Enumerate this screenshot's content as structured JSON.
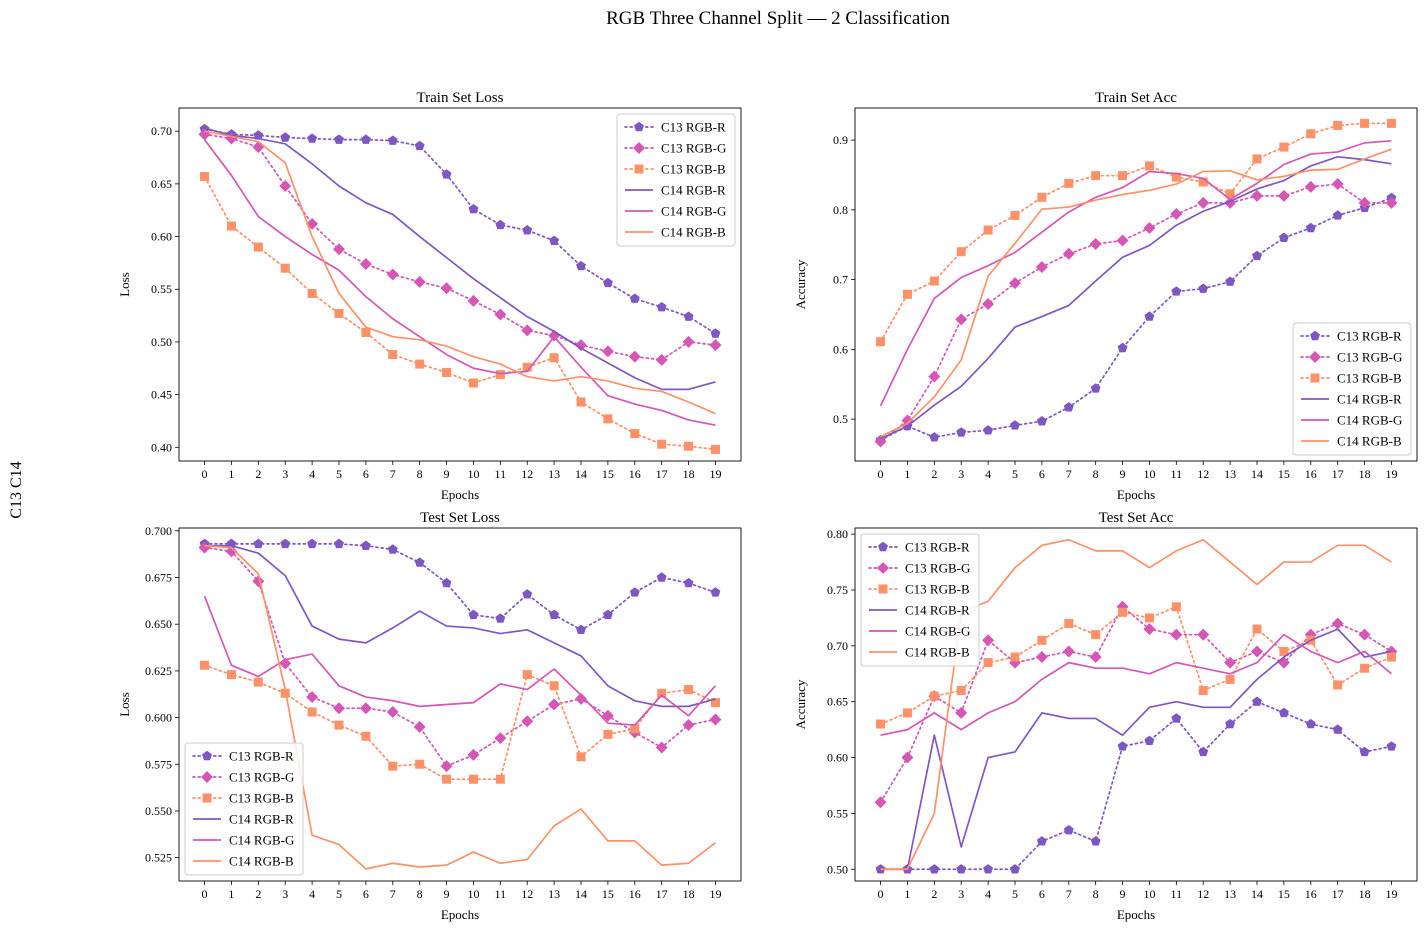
{
  "figure": {
    "title": "RGB Three Channel Split — 2 Classification",
    "side_label": "C13 C14"
  },
  "colors": {
    "R": "#7e57c2",
    "G": "#d556b5",
    "B": "#ff9068"
  },
  "chart_data": [
    {
      "type": "line",
      "title": "Train Set Loss",
      "xlabel": "Epochs",
      "ylabel": "Loss",
      "x": [
        0,
        1,
        2,
        3,
        4,
        5,
        6,
        7,
        8,
        9,
        10,
        11,
        12,
        13,
        14,
        15,
        16,
        17,
        18,
        19
      ],
      "ylim": [
        0.387,
        0.722
      ],
      "yticks": [
        0.4,
        0.45,
        0.5,
        0.55,
        0.6,
        0.65,
        0.7
      ],
      "ytick_labels": [
        "0.40",
        "0.45",
        "0.50",
        "0.55",
        "0.60",
        "0.65",
        "0.70"
      ],
      "legend_position": "top-right",
      "series": [
        {
          "name": "C13 RGB-R",
          "style": "dotted",
          "marker": "pentagon",
          "channel": "R",
          "values": [
            0.702,
            0.697,
            0.696,
            0.694,
            0.693,
            0.692,
            0.692,
            0.691,
            0.686,
            0.659,
            0.626,
            0.611,
            0.606,
            0.596,
            0.572,
            0.556,
            0.541,
            0.533,
            0.524,
            0.508
          ]
        },
        {
          "name": "C13 RGB-G",
          "style": "dotted",
          "marker": "diamond",
          "channel": "G",
          "values": [
            0.697,
            0.693,
            0.685,
            0.648,
            0.612,
            0.588,
            0.574,
            0.564,
            0.557,
            0.551,
            0.539,
            0.526,
            0.511,
            0.506,
            0.497,
            0.491,
            0.486,
            0.483,
            0.5,
            0.497
          ]
        },
        {
          "name": "C13 RGB-B",
          "style": "dotted",
          "marker": "square",
          "channel": "B",
          "values": [
            0.657,
            0.61,
            0.59,
            0.57,
            0.546,
            0.527,
            0.509,
            0.488,
            0.479,
            0.471,
            0.461,
            0.469,
            0.476,
            0.485,
            0.443,
            0.427,
            0.413,
            0.403,
            0.401,
            0.398
          ]
        },
        {
          "name": "C14 RGB-R",
          "style": "solid",
          "marker": "none",
          "channel": "R",
          "values": [
            0.703,
            0.696,
            0.693,
            0.688,
            0.669,
            0.648,
            0.632,
            0.621,
            0.6,
            0.58,
            0.56,
            0.542,
            0.524,
            0.51,
            0.494,
            0.48,
            0.466,
            0.455,
            0.455,
            0.462
          ]
        },
        {
          "name": "C14 RGB-G",
          "style": "solid",
          "marker": "none",
          "channel": "G",
          "values": [
            0.692,
            0.658,
            0.619,
            0.6,
            0.583,
            0.568,
            0.543,
            0.522,
            0.505,
            0.488,
            0.475,
            0.47,
            0.472,
            0.505,
            0.476,
            0.449,
            0.441,
            0.435,
            0.426,
            0.421
          ]
        },
        {
          "name": "C14 RGB-B",
          "style": "solid",
          "marker": "none",
          "channel": "B",
          "values": [
            0.7,
            0.695,
            0.69,
            0.67,
            0.6,
            0.546,
            0.514,
            0.505,
            0.502,
            0.496,
            0.486,
            0.479,
            0.467,
            0.463,
            0.467,
            0.463,
            0.456,
            0.453,
            0.443,
            0.432
          ]
        }
      ]
    },
    {
      "type": "line",
      "title": "Train Set Acc",
      "xlabel": "Epochs",
      "ylabel": "Accuracy",
      "x": [
        0,
        1,
        2,
        3,
        4,
        5,
        6,
        7,
        8,
        9,
        10,
        11,
        12,
        13,
        14,
        15,
        16,
        17,
        18,
        19
      ],
      "ylim": [
        0.44,
        0.946
      ],
      "yticks": [
        0.5,
        0.6,
        0.7,
        0.8,
        0.9
      ],
      "ytick_labels": [
        "0.5",
        "0.6",
        "0.7",
        "0.8",
        "0.9"
      ],
      "legend_position": "bottom-right",
      "series": [
        {
          "name": "C13 RGB-R",
          "style": "dotted",
          "marker": "pentagon",
          "channel": "R",
          "values": [
            0.47,
            0.49,
            0.474,
            0.481,
            0.484,
            0.491,
            0.497,
            0.517,
            0.544,
            0.602,
            0.647,
            0.683,
            0.687,
            0.697,
            0.734,
            0.76,
            0.774,
            0.792,
            0.803,
            0.817
          ]
        },
        {
          "name": "C13 RGB-G",
          "style": "dotted",
          "marker": "diamond",
          "channel": "G",
          "values": [
            0.468,
            0.498,
            0.561,
            0.643,
            0.665,
            0.695,
            0.718,
            0.737,
            0.751,
            0.756,
            0.774,
            0.794,
            0.81,
            0.81,
            0.82,
            0.82,
            0.833,
            0.837,
            0.81,
            0.81
          ]
        },
        {
          "name": "C13 RGB-B",
          "style": "dotted",
          "marker": "square",
          "channel": "B",
          "values": [
            0.611,
            0.679,
            0.698,
            0.74,
            0.771,
            0.792,
            0.818,
            0.838,
            0.849,
            0.849,
            0.863,
            0.847,
            0.84,
            0.823,
            0.873,
            0.89,
            0.909,
            0.921,
            0.924,
            0.924
          ]
        },
        {
          "name": "C14 RGB-R",
          "style": "solid",
          "marker": "none",
          "channel": "R",
          "values": [
            0.472,
            0.49,
            0.52,
            0.547,
            0.587,
            0.632,
            0.647,
            0.663,
            0.698,
            0.732,
            0.749,
            0.778,
            0.798,
            0.812,
            0.83,
            0.842,
            0.863,
            0.876,
            0.872,
            0.866
          ]
        },
        {
          "name": "C14 RGB-G",
          "style": "solid",
          "marker": "none",
          "channel": "G",
          "values": [
            0.519,
            0.6,
            0.673,
            0.703,
            0.72,
            0.739,
            0.768,
            0.797,
            0.818,
            0.832,
            0.855,
            0.852,
            0.845,
            0.815,
            0.838,
            0.865,
            0.88,
            0.883,
            0.896,
            0.899
          ]
        },
        {
          "name": "C14 RGB-B",
          "style": "solid",
          "marker": "none",
          "channel": "B",
          "values": [
            0.475,
            0.494,
            0.532,
            0.585,
            0.705,
            0.752,
            0.801,
            0.804,
            0.814,
            0.822,
            0.828,
            0.837,
            0.855,
            0.856,
            0.843,
            0.848,
            0.857,
            0.858,
            0.873,
            0.887
          ]
        }
      ]
    },
    {
      "type": "line",
      "title": "Test Set Loss",
      "xlabel": "Epochs",
      "ylabel": "Loss",
      "x": [
        0,
        1,
        2,
        3,
        4,
        5,
        6,
        7,
        8,
        9,
        10,
        11,
        12,
        13,
        14,
        15,
        16,
        17,
        18,
        19
      ],
      "ylim": [
        0.5125,
        0.7015
      ],
      "yticks": [
        0.525,
        0.55,
        0.575,
        0.6,
        0.625,
        0.65,
        0.675,
        0.7
      ],
      "ytick_labels": [
        "0.525",
        "0.550",
        "0.575",
        "0.600",
        "0.625",
        "0.650",
        "0.675",
        "0.700"
      ],
      "legend_position": "bottom-left",
      "series": [
        {
          "name": "C13 RGB-R",
          "style": "dotted",
          "marker": "pentagon",
          "channel": "R",
          "values": [
            0.693,
            0.693,
            0.693,
            0.693,
            0.693,
            0.693,
            0.692,
            0.69,
            0.683,
            0.672,
            0.655,
            0.653,
            0.666,
            0.655,
            0.647,
            0.655,
            0.667,
            0.675,
            0.672,
            0.667
          ]
        },
        {
          "name": "C13 RGB-G",
          "style": "dotted",
          "marker": "diamond",
          "channel": "G",
          "values": [
            0.691,
            0.689,
            0.673,
            0.629,
            0.611,
            0.605,
            0.605,
            0.603,
            0.595,
            0.574,
            0.58,
            0.589,
            0.598,
            0.607,
            0.61,
            0.601,
            0.592,
            0.584,
            0.596,
            0.599
          ]
        },
        {
          "name": "C13 RGB-B",
          "style": "dotted",
          "marker": "square",
          "channel": "B",
          "values": [
            0.628,
            0.623,
            0.619,
            0.613,
            0.603,
            0.596,
            0.59,
            0.574,
            0.575,
            0.567,
            0.567,
            0.567,
            0.623,
            0.617,
            0.579,
            0.591,
            0.594,
            0.613,
            0.615,
            0.608
          ]
        },
        {
          "name": "C14 RGB-R",
          "style": "solid",
          "marker": "none",
          "channel": "R",
          "values": [
            0.692,
            0.692,
            0.688,
            0.676,
            0.649,
            0.642,
            0.64,
            0.648,
            0.657,
            0.649,
            0.648,
            0.645,
            0.647,
            0.64,
            0.633,
            0.617,
            0.609,
            0.606,
            0.606,
            0.61
          ]
        },
        {
          "name": "C14 RGB-G",
          "style": "solid",
          "marker": "none",
          "channel": "G",
          "values": [
            0.665,
            0.628,
            0.622,
            0.631,
            0.634,
            0.617,
            0.611,
            0.609,
            0.606,
            0.607,
            0.608,
            0.618,
            0.615,
            0.626,
            0.612,
            0.597,
            0.596,
            0.612,
            0.601,
            0.617
          ]
        },
        {
          "name": "C14 RGB-B",
          "style": "solid",
          "marker": "none",
          "channel": "B",
          "values": [
            0.692,
            0.691,
            0.677,
            0.615,
            0.537,
            0.532,
            0.519,
            0.522,
            0.52,
            0.521,
            0.528,
            0.522,
            0.524,
            0.542,
            0.551,
            0.534,
            0.534,
            0.521,
            0.522,
            0.533
          ]
        }
      ]
    },
    {
      "type": "line",
      "title": "Test Set Acc",
      "xlabel": "Epochs",
      "ylabel": "Accuracy",
      "x": [
        0,
        1,
        2,
        3,
        4,
        5,
        6,
        7,
        8,
        9,
        10,
        11,
        12,
        13,
        14,
        15,
        16,
        17,
        18,
        19
      ],
      "ylim": [
        0.4895,
        0.8055
      ],
      "yticks": [
        0.5,
        0.55,
        0.6,
        0.65,
        0.7,
        0.75,
        0.8
      ],
      "ytick_labels": [
        "0.50",
        "0.55",
        "0.60",
        "0.65",
        "0.70",
        "0.75",
        "0.80"
      ],
      "legend_position": "top-left",
      "series": [
        {
          "name": "C13 RGB-R",
          "style": "dotted",
          "marker": "pentagon",
          "channel": "R",
          "values": [
            0.5,
            0.5,
            0.5,
            0.5,
            0.5,
            0.5,
            0.525,
            0.535,
            0.525,
            0.61,
            0.615,
            0.635,
            0.605,
            0.63,
            0.65,
            0.64,
            0.63,
            0.625,
            0.605,
            0.61
          ]
        },
        {
          "name": "C13 RGB-G",
          "style": "dotted",
          "marker": "diamond",
          "channel": "G",
          "values": [
            0.56,
            0.6,
            0.655,
            0.64,
            0.705,
            0.685,
            0.69,
            0.695,
            0.69,
            0.735,
            0.715,
            0.71,
            0.71,
            0.685,
            0.695,
            0.685,
            0.71,
            0.72,
            0.71,
            0.695
          ]
        },
        {
          "name": "C13 RGB-B",
          "style": "dotted",
          "marker": "square",
          "channel": "B",
          "values": [
            0.63,
            0.64,
            0.655,
            0.66,
            0.685,
            0.69,
            0.705,
            0.72,
            0.71,
            0.73,
            0.725,
            0.735,
            0.66,
            0.67,
            0.715,
            0.695,
            0.705,
            0.665,
            0.68,
            0.69
          ]
        },
        {
          "name": "C14 RGB-R",
          "style": "solid",
          "marker": "none",
          "channel": "R",
          "values": [
            0.5,
            0.5,
            0.62,
            0.52,
            0.6,
            0.605,
            0.64,
            0.635,
            0.635,
            0.62,
            0.645,
            0.65,
            0.645,
            0.645,
            0.67,
            0.69,
            0.705,
            0.715,
            0.69,
            0.695
          ]
        },
        {
          "name": "C14 RGB-G",
          "style": "solid",
          "marker": "none",
          "channel": "G",
          "values": [
            0.62,
            0.625,
            0.64,
            0.625,
            0.64,
            0.65,
            0.67,
            0.685,
            0.68,
            0.68,
            0.675,
            0.685,
            0.68,
            0.675,
            0.685,
            0.71,
            0.695,
            0.685,
            0.695,
            0.675
          ]
        },
        {
          "name": "C14 RGB-B",
          "style": "solid",
          "marker": "none",
          "channel": "B",
          "values": [
            0.5,
            0.5,
            0.55,
            0.73,
            0.74,
            0.77,
            0.79,
            0.795,
            0.785,
            0.785,
            0.77,
            0.785,
            0.795,
            0.775,
            0.755,
            0.775,
            0.775,
            0.79,
            0.79,
            0.775
          ]
        }
      ]
    }
  ]
}
